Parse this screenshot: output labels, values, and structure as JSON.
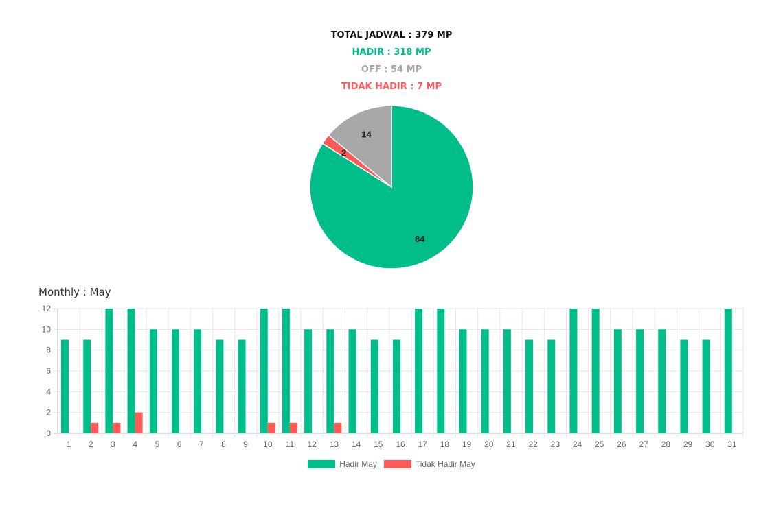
{
  "summary": {
    "total": "TOTAL JADWAL : 379 MP",
    "hadir": "HADIR : 318 MP",
    "off": "OFF : 54 MP",
    "tidak_hadir": "TIDAK HADIR : 7 MP"
  },
  "colors": {
    "hadir": "#00bd8a",
    "off": "#a8a8a8",
    "tidak_hadir": "#ff5a5a"
  },
  "monthly_title": "Monthly : May",
  "chart_data": [
    {
      "type": "pie",
      "slices": [
        {
          "label": "HADIR",
          "value": 84,
          "color": "#00bd8a"
        },
        {
          "label": "TIDAK HADIR",
          "value": 2,
          "color": "#ff5a5a"
        },
        {
          "label": "OFF",
          "value": 14,
          "color": "#a8a8a8"
        }
      ],
      "data_labels": [
        "84",
        "2",
        "14"
      ]
    },
    {
      "type": "bar",
      "categories": [
        "1",
        "2",
        "3",
        "4",
        "5",
        "6",
        "7",
        "8",
        "9",
        "10",
        "11",
        "12",
        "13",
        "14",
        "15",
        "16",
        "17",
        "18",
        "19",
        "20",
        "21",
        "22",
        "23",
        "24",
        "25",
        "26",
        "27",
        "28",
        "29",
        "30",
        "31"
      ],
      "series": [
        {
          "name": "Hadir May",
          "color": "#00bd8a",
          "values": [
            9,
            9,
            12,
            12,
            10,
            10,
            10,
            9,
            9,
            12,
            12,
            10,
            10,
            10,
            9,
            9,
            12,
            12,
            10,
            10,
            10,
            9,
            9,
            12,
            12,
            10,
            10,
            10,
            9,
            9,
            12
          ]
        },
        {
          "name": "Tidak Hadir May",
          "color": "#ff5a5a",
          "values": [
            0,
            1,
            1,
            2,
            0,
            0,
            0,
            0,
            0,
            1,
            1,
            0,
            1,
            0,
            0,
            0,
            0,
            0,
            0,
            0,
            0,
            0,
            0,
            0,
            0,
            0,
            0,
            0,
            0,
            0,
            0
          ]
        }
      ],
      "ylim": [
        0,
        12
      ],
      "yticks": [
        0,
        2,
        4,
        6,
        8,
        10,
        12
      ],
      "grid": true,
      "legend": "bottom"
    }
  ]
}
